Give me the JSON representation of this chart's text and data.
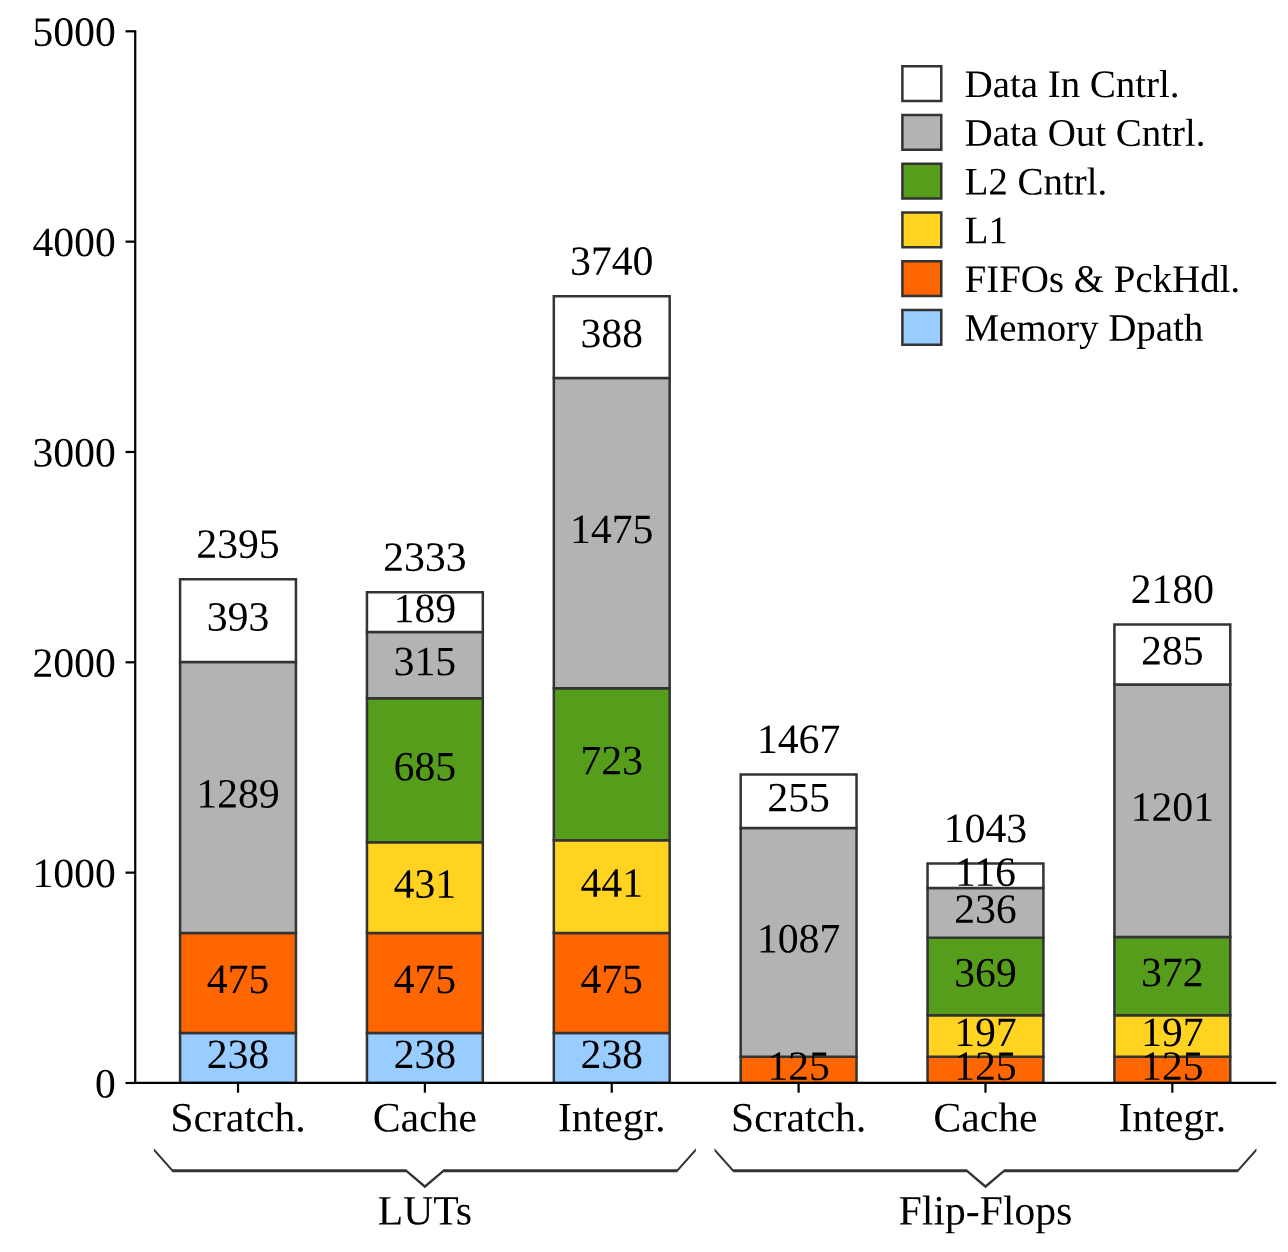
{
  "chart_data": {
    "type": "bar",
    "stacked": true,
    "categories": [
      "Scratch.",
      "Cache",
      "Integr.",
      "Scratch.",
      "Cache",
      "Integr."
    ],
    "series": [
      {
        "name": "Memory Dpath",
        "color": "#99ccff",
        "values": [
          238,
          238,
          238,
          null,
          null,
          null
        ]
      },
      {
        "name": "FIFOs & PckHdl.",
        "color": "#ff6600",
        "values": [
          475,
          475,
          475,
          125,
          125,
          125
        ]
      },
      {
        "name": "L1",
        "color": "#ffd320",
        "values": [
          null,
          431,
          441,
          null,
          197,
          197
        ]
      },
      {
        "name": "L2 Cntrl.",
        "color": "#579d1c",
        "values": [
          null,
          685,
          723,
          null,
          369,
          372
        ]
      },
      {
        "name": "Data Out Cntrl.",
        "color": "#b3b3b3",
        "values": [
          1289,
          315,
          1475,
          1087,
          236,
          1201
        ]
      },
      {
        "name": "Data In Cntrl.",
        "color": "#ffffff",
        "values": [
          393,
          189,
          388,
          255,
          116,
          285
        ]
      }
    ],
    "totals": [
      "2395",
      "2333",
      "3740",
      "1467",
      "1043",
      "2180"
    ],
    "annotations": [
      "LUTs",
      "Flip-Flops"
    ],
    "ylim": [
      0,
      5000
    ],
    "yticks": [
      0,
      1000,
      2000,
      3000,
      4000,
      5000
    ],
    "data_labels": true,
    "grid": false,
    "legend": "top right"
  }
}
